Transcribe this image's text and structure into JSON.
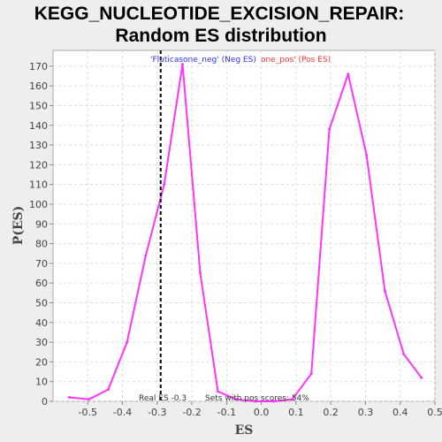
{
  "chart_data": {
    "type": "line",
    "title_lines": [
      "KEGG_NUCLEOTIDE_EXCISION_REPAIR:",
      "Random ES distribution"
    ],
    "xlabel": "ES",
    "ylabel": "P(ES)",
    "xlim": [
      -0.6,
      0.5
    ],
    "ylim": [
      0,
      178
    ],
    "xticks": [
      -0.5,
      -0.4,
      -0.3,
      -0.2,
      -0.1,
      0.0,
      0.1,
      0.2,
      0.3,
      0.4,
      0.5
    ],
    "xtick_labels": [
      "-0.5",
      "-0.4",
      "-0.3",
      "-0.2",
      "-0.1",
      "0.0",
      "0.1",
      "0.2",
      "0.3",
      "0.4",
      "0.5"
    ],
    "yticks": [
      0,
      10,
      20,
      30,
      40,
      50,
      60,
      70,
      80,
      90,
      100,
      110,
      120,
      130,
      140,
      150,
      160,
      170
    ],
    "grid": true,
    "series": [
      {
        "name": "Random ES distribution",
        "color": "#ff33ff",
        "x": [
          -0.553,
          -0.497,
          -0.441,
          -0.387,
          -0.333,
          -0.28,
          -0.227,
          -0.176,
          -0.125,
          -0.072,
          -0.017,
          0.036,
          0.089,
          0.144,
          0.196,
          0.25,
          0.303,
          0.356,
          0.41,
          0.461
        ],
        "y": [
          2,
          1,
          6,
          30,
          74,
          110,
          171,
          65,
          5,
          1,
          0,
          0,
          1,
          14,
          138,
          166,
          125,
          56,
          24,
          12
        ]
      }
    ],
    "real_es": {
      "value": -0.29,
      "label": "Real ES -0.3",
      "color": "#000000"
    },
    "annotations": {
      "neg_label": "'Fluticasone_neg' (Neg ES)",
      "neg_color": "#3333ff",
      "pos_label": "one_pos' (Pos ES)",
      "pos_color": "#ff3333",
      "pos_scores_label": "Sets with pos scores: 54%"
    }
  }
}
